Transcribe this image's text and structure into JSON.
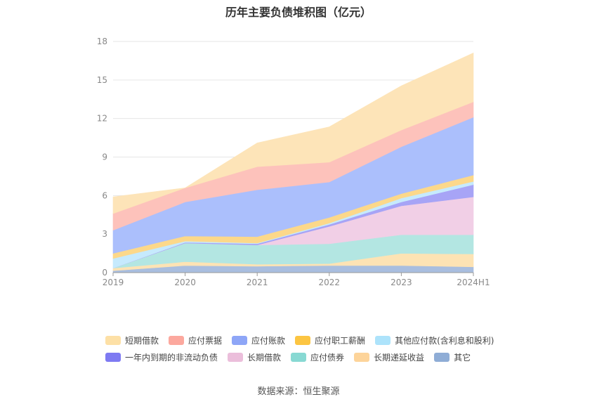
{
  "header": {
    "title": "历年主要负债堆积图（亿元）"
  },
  "footer": {
    "source": "数据来源：恒生聚源"
  },
  "chart_data": {
    "type": "area",
    "stacked": true,
    "title": "历年主要负债堆积图（亿元）",
    "categories": [
      "2019",
      "2020",
      "2021",
      "2022",
      "2023",
      "2024H1"
    ],
    "ylim": [
      0,
      18
    ],
    "yticks": [
      0,
      3,
      6,
      9,
      12,
      15,
      18
    ],
    "grid": true,
    "legend_position": "bottom",
    "series": [
      {
        "name": "其它",
        "color": "#a9bedf",
        "values": [
          0.15,
          0.55,
          0.5,
          0.55,
          0.55,
          0.45
        ]
      },
      {
        "name": "长期递延收益",
        "color": "#fde3b4",
        "values": [
          0.2,
          0.3,
          0.15,
          0.15,
          0.95,
          1.0
        ]
      },
      {
        "name": "应付债券",
        "color": "#b3e6e2",
        "values": [
          0,
          1.45,
          1.5,
          1.55,
          1.45,
          1.5
        ]
      },
      {
        "name": "长期借款",
        "color": "#f1cfe6",
        "values": [
          0,
          0,
          0,
          1.35,
          2.25,
          2.95
        ]
      },
      {
        "name": "一年内到期的非流动负债",
        "color": "#a7a4f6",
        "values": [
          0,
          0.05,
          0.1,
          0.15,
          0.3,
          0.95
        ]
      },
      {
        "name": "其他应付款(含利息和股利)",
        "color": "#c6eafd",
        "values": [
          0.75,
          0.1,
          0.05,
          0.1,
          0.3,
          0.25
        ]
      },
      {
        "name": "应付职工薪酬",
        "color": "#fcd88a",
        "values": [
          0.4,
          0.4,
          0.5,
          0.45,
          0.35,
          0.5
        ]
      },
      {
        "name": "应付账款",
        "color": "#abbffc",
        "values": [
          1.8,
          2.65,
          3.65,
          2.75,
          3.65,
          4.5
        ]
      },
      {
        "name": "应付票据",
        "color": "#fdc2bb",
        "values": [
          1.3,
          1.1,
          1.8,
          1.55,
          1.3,
          1.2
        ]
      },
      {
        "name": "短期借款",
        "color": "#fde4b8",
        "values": [
          1.3,
          0,
          1.85,
          2.75,
          3.45,
          3.8
        ]
      }
    ],
    "legend": [
      {
        "name": "短期借款",
        "color": "#fde0a6"
      },
      {
        "name": "应付票据",
        "color": "#fca89e"
      },
      {
        "name": "应付账款",
        "color": "#8ea6f7"
      },
      {
        "name": "应付职工薪酬",
        "color": "#fcc542"
      },
      {
        "name": "其他应付款(含利息和股利)",
        "color": "#ade3fb"
      },
      {
        "name": "一年内到期的非流动负债",
        "color": "#7e7af2"
      },
      {
        "name": "长期借款",
        "color": "#ebbedb"
      },
      {
        "name": "应付债券",
        "color": "#88d9d3"
      },
      {
        "name": "长期递延收益",
        "color": "#fdd49a"
      },
      {
        "name": "其它",
        "color": "#8fadd6"
      }
    ]
  }
}
